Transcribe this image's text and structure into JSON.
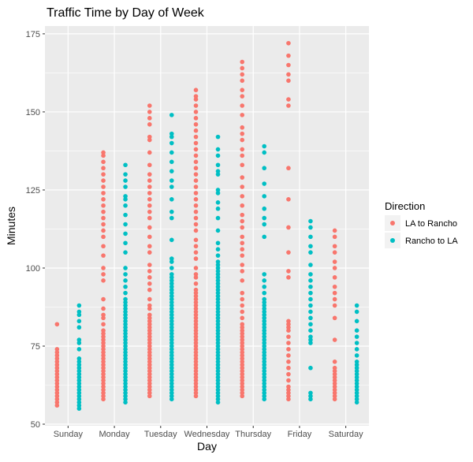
{
  "chart_data": {
    "type": "scatter",
    "title": "Traffic Time by Day of Week",
    "xlabel": "Day",
    "ylabel": "Minutes",
    "categories": [
      "Sunday",
      "Monday",
      "Tuesday",
      "Wednesday",
      "Thursday",
      "Friday",
      "Saturday"
    ],
    "ylim": [
      49.5,
      177.5
    ],
    "yticks": [
      50,
      75,
      100,
      125,
      150,
      175
    ],
    "grid": true,
    "legend": {
      "title": "Direction",
      "position": "right"
    },
    "series": [
      {
        "name": "LA to Rancho",
        "color": "#F8766D",
        "points": {
          "Sunday": [
            56,
            57,
            58,
            59,
            60,
            61,
            62,
            63,
            64,
            65,
            66,
            67,
            68,
            69,
            70,
            71,
            72,
            73,
            74,
            82
          ],
          "Monday": [
            58,
            59,
            60,
            61,
            62,
            63,
            64,
            65,
            66,
            67,
            68,
            69,
            70,
            71,
            72,
            73,
            74,
            75,
            76,
            77,
            78,
            79,
            80,
            82,
            84,
            85,
            87,
            90,
            96,
            98,
            100,
            104,
            107,
            110,
            112,
            114,
            116,
            118,
            120,
            122,
            124,
            126,
            128,
            130,
            132,
            134,
            136,
            137
          ],
          "Tuesday": [
            59,
            60,
            61,
            62,
            63,
            64,
            65,
            66,
            67,
            68,
            69,
            70,
            71,
            72,
            73,
            74,
            75,
            76,
            77,
            78,
            79,
            80,
            81,
            82,
            83,
            84,
            85,
            87,
            88,
            90,
            93,
            95,
            97,
            99,
            101,
            105,
            107,
            110,
            113,
            116,
            118,
            120,
            122,
            124,
            126,
            128,
            130,
            133,
            137,
            141,
            142,
            146,
            148,
            150,
            152
          ],
          "Wednesday": [
            59,
            60,
            61,
            62,
            63,
            64,
            65,
            66,
            67,
            68,
            69,
            70,
            71,
            72,
            73,
            74,
            75,
            76,
            77,
            78,
            79,
            80,
            81,
            82,
            83,
            84,
            85,
            86,
            87,
            88,
            89,
            90,
            91,
            92,
            93,
            95,
            97,
            98,
            100,
            103,
            105,
            107,
            109,
            112,
            114,
            116,
            118,
            120,
            122,
            124,
            126,
            128,
            130,
            132,
            134,
            136,
            138,
            140,
            142,
            144,
            146,
            148,
            150,
            152,
            154,
            155,
            157
          ],
          "Thursday": [
            59,
            60,
            61,
            62,
            63,
            64,
            65,
            66,
            67,
            68,
            69,
            70,
            71,
            72,
            73,
            74,
            75,
            76,
            77,
            78,
            79,
            80,
            81,
            82,
            84,
            86,
            88,
            90,
            92,
            96,
            99,
            101,
            104,
            106,
            108,
            110,
            113,
            115,
            117,
            120,
            123,
            126,
            129,
            133,
            136,
            138,
            141,
            143,
            145,
            149,
            152,
            155,
            157,
            160,
            162,
            164,
            166
          ],
          "Friday": [
            58,
            59,
            60,
            61,
            62,
            64,
            66,
            68,
            70,
            72,
            74,
            76,
            78,
            80,
            81,
            82,
            83,
            97,
            99,
            105,
            113,
            122,
            132,
            152,
            154,
            160,
            162,
            165,
            168,
            172
          ],
          "Saturday": [
            58,
            59,
            60,
            61,
            62,
            63,
            64,
            65,
            66,
            67,
            68,
            70,
            77,
            84,
            88,
            90,
            92,
            94,
            97,
            100,
            102,
            105,
            107,
            110,
            112
          ]
        }
      },
      {
        "name": "Rancho to LA",
        "color": "#00BFC4",
        "points": {
          "Sunday": [
            55,
            56,
            57,
            58,
            59,
            60,
            61,
            62,
            63,
            64,
            65,
            66,
            67,
            68,
            69,
            70,
            71,
            74,
            76,
            77,
            81,
            83,
            85,
            86,
            88
          ],
          "Monday": [
            57,
            58,
            59,
            60,
            61,
            62,
            63,
            64,
            65,
            66,
            67,
            68,
            69,
            70,
            71,
            72,
            73,
            74,
            75,
            76,
            77,
            78,
            79,
            80,
            81,
            82,
            83,
            84,
            85,
            86,
            87,
            88,
            89,
            90,
            92,
            94,
            96,
            98,
            100,
            105,
            108,
            111,
            114,
            117,
            120,
            122,
            123,
            126,
            128,
            130,
            133
          ],
          "Tuesday": [
            58,
            59,
            60,
            61,
            62,
            63,
            64,
            65,
            66,
            67,
            68,
            69,
            70,
            71,
            72,
            73,
            74,
            75,
            76,
            77,
            78,
            79,
            80,
            81,
            82,
            83,
            84,
            85,
            86,
            87,
            88,
            89,
            90,
            91,
            92,
            93,
            94,
            95,
            96,
            97,
            98,
            100,
            102,
            103,
            109,
            116,
            118,
            122,
            126,
            128,
            131,
            134,
            137,
            140,
            142,
            143,
            149
          ],
          "Wednesday": [
            57,
            58,
            59,
            60,
            61,
            62,
            63,
            64,
            65,
            66,
            67,
            68,
            69,
            70,
            71,
            72,
            73,
            74,
            75,
            76,
            77,
            78,
            79,
            80,
            81,
            82,
            83,
            84,
            85,
            86,
            87,
            88,
            89,
            90,
            91,
            92,
            93,
            94,
            95,
            96,
            97,
            98,
            99,
            100,
            101,
            102,
            104,
            106,
            108,
            112,
            116,
            119,
            121,
            124,
            125,
            130,
            131,
            133,
            136,
            138,
            142
          ],
          "Thursday": [
            58,
            59,
            60,
            61,
            62,
            63,
            64,
            65,
            66,
            67,
            68,
            69,
            70,
            71,
            72,
            73,
            74,
            75,
            76,
            77,
            78,
            79,
            80,
            81,
            82,
            83,
            84,
            85,
            86,
            87,
            88,
            89,
            90,
            92,
            94,
            96,
            98,
            110,
            114,
            116,
            119,
            123,
            127,
            132,
            137,
            139
          ],
          "Friday": [
            58,
            59,
            60,
            68,
            76,
            77,
            78,
            80,
            82,
            84,
            86,
            88,
            90,
            92,
            94,
            96,
            98,
            101,
            105,
            107,
            110,
            113,
            115
          ],
          "Saturday": [
            57,
            58,
            59,
            60,
            61,
            62,
            63,
            64,
            65,
            66,
            67,
            68,
            69,
            70,
            72,
            74,
            76,
            78,
            80,
            83,
            86,
            88
          ]
        }
      }
    ]
  }
}
